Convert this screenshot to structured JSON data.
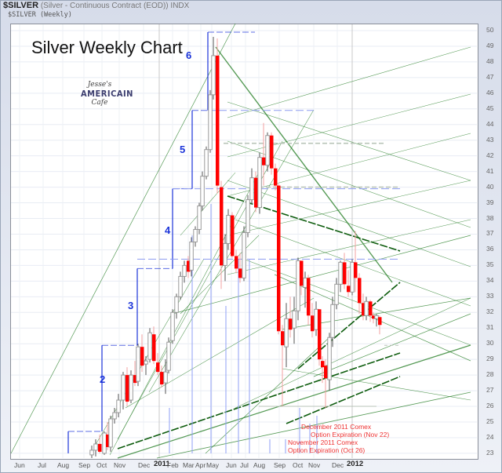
{
  "header": {
    "symbol": "$SILVER",
    "description": "(Silver - Continuous Contract (EOD)) INDX",
    "series_label": "$SILVER (Weekly)"
  },
  "title": "Silver Weekly Chart",
  "logo": {
    "line1": "Jesse's",
    "line2": "AMERICAIN",
    "line3": "Cafe"
  },
  "colors": {
    "down": "#ff0000",
    "up_outline": "#9a9a9a",
    "wave": "#1a33d9",
    "fan": "#1f7a1f",
    "annotation": "#e33333",
    "grid": "#e8ecf4"
  },
  "chart_data": {
    "type": "candlestick",
    "title": "Silver Weekly Chart",
    "xlabel": "",
    "ylabel": "",
    "ylim": [
      23,
      50
    ],
    "grid": true,
    "y_ticks": [
      50,
      49,
      48,
      47,
      46,
      45,
      44,
      43,
      42,
      41,
      40,
      39,
      38,
      37,
      36,
      35,
      34,
      33,
      32,
      31,
      30,
      29,
      28,
      27,
      26,
      25,
      24,
      23
    ],
    "x_ticks": [
      "Jun",
      "Jul",
      "Aug",
      "Sep",
      "Oct",
      "Nov",
      "Dec",
      "2011",
      "Feb",
      "Mar",
      "Apr",
      "May",
      "Jun",
      "Jul",
      "Aug",
      "Sep",
      "Oct",
      "Nov",
      "Dec",
      "2012"
    ],
    "x_tick_pos": [
      25,
      55,
      80,
      107,
      130,
      152,
      183,
      203,
      220,
      240,
      256,
      270,
      295,
      313,
      330,
      356,
      380,
      400,
      430,
      449
    ],
    "wave_labels": [
      {
        "label": "2",
        "price": 27.7
      },
      {
        "label": "3",
        "price": 32.4
      },
      {
        "label": "4",
        "price": 37.2
      },
      {
        "label": "5",
        "price": 42.4
      },
      {
        "label": "6",
        "price": 48.4
      }
    ],
    "wave_steps": [
      {
        "x1": 87,
        "x2": 130,
        "level": 24.4
      },
      {
        "x1": 130,
        "x2": 175,
        "level": 29.9
      },
      {
        "x1": 175,
        "x2": 220,
        "level": 34.8
      },
      {
        "x1": 220,
        "x2": 245,
        "level": 39.9
      },
      {
        "x1": 245,
        "x2": 265,
        "level": 44.9
      },
      {
        "x1": 265,
        "x2": 325,
        "level": 49.9
      }
    ],
    "candles": [
      {
        "x": 117,
        "o": 22.9,
        "h": 23.5,
        "l": 22.7,
        "c": 23.2
      },
      {
        "x": 122,
        "o": 23.2,
        "h": 23.9,
        "l": 22.8,
        "c": 23.6
      },
      {
        "x": 127,
        "o": 23.6,
        "h": 24.2,
        "l": 23.0,
        "c": 23.1
      },
      {
        "x": 133,
        "o": 23.0,
        "h": 24.4,
        "l": 22.9,
        "c": 24.3
      },
      {
        "x": 137,
        "o": 24.2,
        "h": 25.0,
        "l": 23.2,
        "c": 23.4
      },
      {
        "x": 141,
        "o": 23.4,
        "h": 25.4,
        "l": 23.1,
        "c": 25.2
      },
      {
        "x": 146,
        "o": 25.2,
        "h": 25.9,
        "l": 24.9,
        "c": 25.6
      },
      {
        "x": 151,
        "o": 25.6,
        "h": 26.8,
        "l": 25.3,
        "c": 26.4
      },
      {
        "x": 157,
        "o": 26.4,
        "h": 28.2,
        "l": 25.8,
        "c": 28.0
      },
      {
        "x": 162,
        "o": 28.0,
        "h": 28.5,
        "l": 26.0,
        "c": 26.3
      },
      {
        "x": 167,
        "o": 26.4,
        "h": 28.3,
        "l": 26.2,
        "c": 28.0
      },
      {
        "x": 172,
        "o": 28.0,
        "h": 28.9,
        "l": 27.3,
        "c": 27.5
      },
      {
        "x": 176,
        "o": 27.6,
        "h": 30.0,
        "l": 27.3,
        "c": 29.8
      },
      {
        "x": 181,
        "o": 29.8,
        "h": 30.6,
        "l": 28.2,
        "c": 28.6
      },
      {
        "x": 186,
        "o": 28.7,
        "h": 29.2,
        "l": 28.0,
        "c": 28.9
      },
      {
        "x": 191,
        "o": 29.0,
        "h": 31.0,
        "l": 28.8,
        "c": 30.7
      },
      {
        "x": 196,
        "o": 30.6,
        "h": 31.1,
        "l": 28.7,
        "c": 28.9
      },
      {
        "x": 201,
        "o": 28.8,
        "h": 29.4,
        "l": 28.0,
        "c": 28.2
      },
      {
        "x": 206,
        "o": 28.2,
        "h": 28.6,
        "l": 27.2,
        "c": 27.4
      },
      {
        "x": 211,
        "o": 27.5,
        "h": 29.0,
        "l": 26.8,
        "c": 28.2
      },
      {
        "x": 215,
        "o": 28.3,
        "h": 30.4,
        "l": 28.1,
        "c": 30.1
      },
      {
        "x": 220,
        "o": 30.2,
        "h": 32.2,
        "l": 30.0,
        "c": 32.0
      },
      {
        "x": 225,
        "o": 32.0,
        "h": 33.2,
        "l": 31.6,
        "c": 33.0
      },
      {
        "x": 230,
        "o": 33.0,
        "h": 34.6,
        "l": 32.8,
        "c": 34.3
      },
      {
        "x": 235,
        "o": 34.3,
        "h": 35.3,
        "l": 33.9,
        "c": 35.0
      },
      {
        "x": 240,
        "o": 35.3,
        "h": 35.6,
        "l": 34.2,
        "c": 34.6
      },
      {
        "x": 244,
        "o": 34.7,
        "h": 36.8,
        "l": 34.3,
        "c": 36.5
      },
      {
        "x": 249,
        "o": 36.5,
        "h": 37.5,
        "l": 36.2,
        "c": 37.3
      },
      {
        "x": 254,
        "o": 37.3,
        "h": 39.0,
        "l": 37.0,
        "c": 38.8
      },
      {
        "x": 258,
        "o": 38.8,
        "h": 41.0,
        "l": 38.5,
        "c": 40.7
      },
      {
        "x": 263,
        "o": 40.7,
        "h": 42.6,
        "l": 40.5,
        "c": 42.4
      },
      {
        "x": 268,
        "o": 42.4,
        "h": 46.2,
        "l": 42.2,
        "c": 45.9
      },
      {
        "x": 272,
        "o": 45.9,
        "h": 49.6,
        "l": 45.6,
        "c": 48.4
      },
      {
        "x": 277,
        "o": 48.4,
        "h": 49.5,
        "l": 39.6,
        "c": 40.1
      },
      {
        "x": 282,
        "o": 40.0,
        "h": 40.4,
        "l": 33.5,
        "c": 35.0
      },
      {
        "x": 287,
        "o": 35.0,
        "h": 37.0,
        "l": 34.0,
        "c": 36.4
      },
      {
        "x": 291,
        "o": 36.4,
        "h": 38.6,
        "l": 36.0,
        "c": 38.2
      },
      {
        "x": 296,
        "o": 38.2,
        "h": 38.4,
        "l": 35.5,
        "c": 35.6
      },
      {
        "x": 301,
        "o": 35.6,
        "h": 36.0,
        "l": 34.5,
        "c": 34.8
      },
      {
        "x": 306,
        "o": 34.8,
        "h": 35.8,
        "l": 33.9,
        "c": 34.2
      },
      {
        "x": 311,
        "o": 34.2,
        "h": 37.5,
        "l": 34.0,
        "c": 37.1
      },
      {
        "x": 316,
        "o": 37.1,
        "h": 39.5,
        "l": 36.8,
        "c": 39.2
      },
      {
        "x": 321,
        "o": 39.2,
        "h": 41.2,
        "l": 38.9,
        "c": 40.6
      },
      {
        "x": 326,
        "o": 40.6,
        "h": 41.0,
        "l": 38.4,
        "c": 38.7
      },
      {
        "x": 331,
        "o": 38.7,
        "h": 42.2,
        "l": 38.3,
        "c": 41.9
      },
      {
        "x": 336,
        "o": 41.9,
        "h": 44.1,
        "l": 40.1,
        "c": 41.4
      },
      {
        "x": 341,
        "o": 41.4,
        "h": 43.5,
        "l": 41.0,
        "c": 43.3
      },
      {
        "x": 346,
        "o": 43.3,
        "h": 43.5,
        "l": 40.8,
        "c": 41.2
      },
      {
        "x": 351,
        "o": 41.2,
        "h": 41.5,
        "l": 39.8,
        "c": 40.1
      },
      {
        "x": 355,
        "o": 40.1,
        "h": 40.2,
        "l": 30.6,
        "c": 30.8
      },
      {
        "x": 360,
        "o": 30.8,
        "h": 31.2,
        "l": 26.0,
        "c": 29.9
      },
      {
        "x": 365,
        "o": 29.8,
        "h": 32.6,
        "l": 28.5,
        "c": 31.6
      },
      {
        "x": 370,
        "o": 31.6,
        "h": 33.0,
        "l": 30.4,
        "c": 30.9
      },
      {
        "x": 375,
        "o": 31.0,
        "h": 33.0,
        "l": 30.0,
        "c": 32.1
      },
      {
        "x": 380,
        "o": 32.1,
        "h": 35.5,
        "l": 31.5,
        "c": 35.3
      },
      {
        "x": 384,
        "o": 35.3,
        "h": 35.0,
        "l": 33.1,
        "c": 33.7
      },
      {
        "x": 389,
        "o": 33.6,
        "h": 34.6,
        "l": 32.3,
        "c": 34.2
      },
      {
        "x": 393,
        "o": 34.2,
        "h": 34.4,
        "l": 31.2,
        "c": 31.8
      },
      {
        "x": 398,
        "o": 31.8,
        "h": 32.6,
        "l": 30.4,
        "c": 30.8
      },
      {
        "x": 403,
        "o": 30.9,
        "h": 32.7,
        "l": 30.5,
        "c": 32.2
      },
      {
        "x": 407,
        "o": 32.2,
        "h": 32.2,
        "l": 28.6,
        "c": 29.0
      },
      {
        "x": 411,
        "o": 28.9,
        "h": 29.2,
        "l": 27.5,
        "c": 28.5
      },
      {
        "x": 415,
        "o": 28.6,
        "h": 29.0,
        "l": 25.9,
        "c": 27.8
      },
      {
        "x": 420,
        "o": 27.7,
        "h": 30.7,
        "l": 27.0,
        "c": 30.4
      },
      {
        "x": 424,
        "o": 30.4,
        "h": 33.0,
        "l": 29.8,
        "c": 32.5
      },
      {
        "x": 429,
        "o": 32.5,
        "h": 34.2,
        "l": 32.2,
        "c": 33.8
      },
      {
        "x": 434,
        "o": 33.8,
        "h": 35.3,
        "l": 33.3,
        "c": 35.2
      },
      {
        "x": 439,
        "o": 35.2,
        "h": 35.8,
        "l": 33.5,
        "c": 33.8
      },
      {
        "x": 444,
        "o": 33.7,
        "h": 34.7,
        "l": 33.0,
        "c": 33.3
      },
      {
        "x": 449,
        "o": 33.3,
        "h": 35.4,
        "l": 33.1,
        "c": 35.2
      },
      {
        "x": 453,
        "o": 35.2,
        "h": 37.2,
        "l": 33.3,
        "c": 34.2
      },
      {
        "x": 458,
        "o": 34.2,
        "h": 34.5,
        "l": 31.9,
        "c": 32.6
      },
      {
        "x": 463,
        "o": 32.6,
        "h": 33.2,
        "l": 31.5,
        "c": 31.8
      },
      {
        "x": 467,
        "o": 31.8,
        "h": 33.0,
        "l": 31.5,
        "c": 32.7
      },
      {
        "x": 472,
        "o": 32.7,
        "h": 32.8,
        "l": 31.4,
        "c": 31.8
      },
      {
        "x": 476,
        "o": 31.8,
        "h": 32.0,
        "l": 31.3,
        "c": 31.6
      },
      {
        "x": 480,
        "o": 31.6,
        "h": 31.9,
        "l": 31.1,
        "c": 31.8
      },
      {
        "x": 484,
        "o": 31.7,
        "h": 31.8,
        "l": 30.6,
        "c": 31.2
      }
    ],
    "expiry_lines": [
      {
        "x": 360,
        "from": 26,
        "label": "November 2011 Comex Option Expiration (Oct 26)"
      },
      {
        "x": 376,
        "from": 26,
        "label": "December 2011 Comex Option Expiration (Nov 22)"
      }
    ],
    "annotations": [
      {
        "text": "December 2011 Comex",
        "x": 384,
        "y": 541
      },
      {
        "text": "Option Expiration (Nov 22)",
        "x": 384,
        "y": 551
      },
      {
        "text": "November 2011 Comex",
        "x": 367,
        "y": 559
      },
      {
        "text": "Option Expiration (Oct 26)",
        "x": 367,
        "y": 569
      }
    ]
  },
  "annotation_text": {
    "dec_line1": "December 2011 Comex",
    "dec_line2": "Option Expiration (Nov 22)",
    "nov_line1": "November 2011 Comex",
    "nov_line2": "Option Expiration (Oct 26)"
  }
}
